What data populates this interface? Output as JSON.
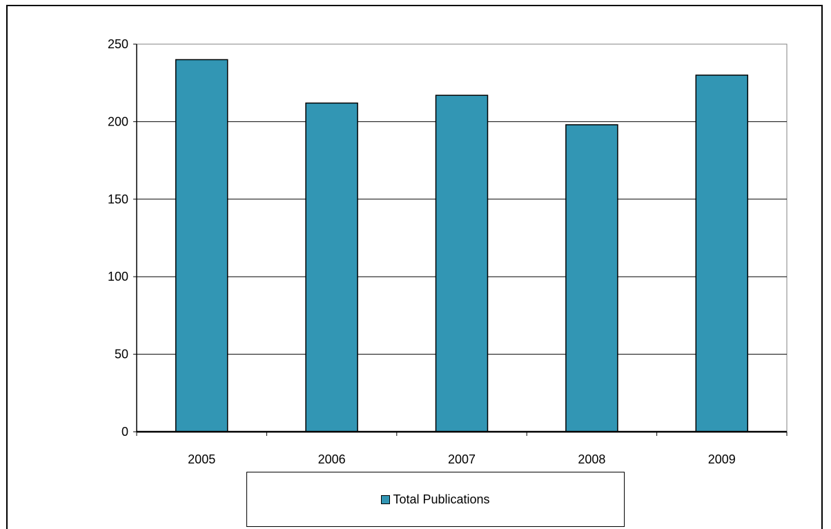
{
  "chart_data": {
    "type": "bar",
    "categories": [
      "2005",
      "2006",
      "2007",
      "2008",
      "2009"
    ],
    "series": [
      {
        "name": "Total Publications",
        "values": [
          240,
          212,
          217,
          198,
          230
        ]
      }
    ],
    "ylim": [
      0,
      250
    ],
    "yticks": [
      "0",
      "50",
      "100",
      "150",
      "200",
      "250"
    ],
    "grid": true,
    "legend_position": "bottom",
    "title": "",
    "xlabel": "",
    "ylabel": "",
    "colors": {
      "bar": "#3296b4",
      "edge": "#000000",
      "grid": "#000000"
    }
  }
}
